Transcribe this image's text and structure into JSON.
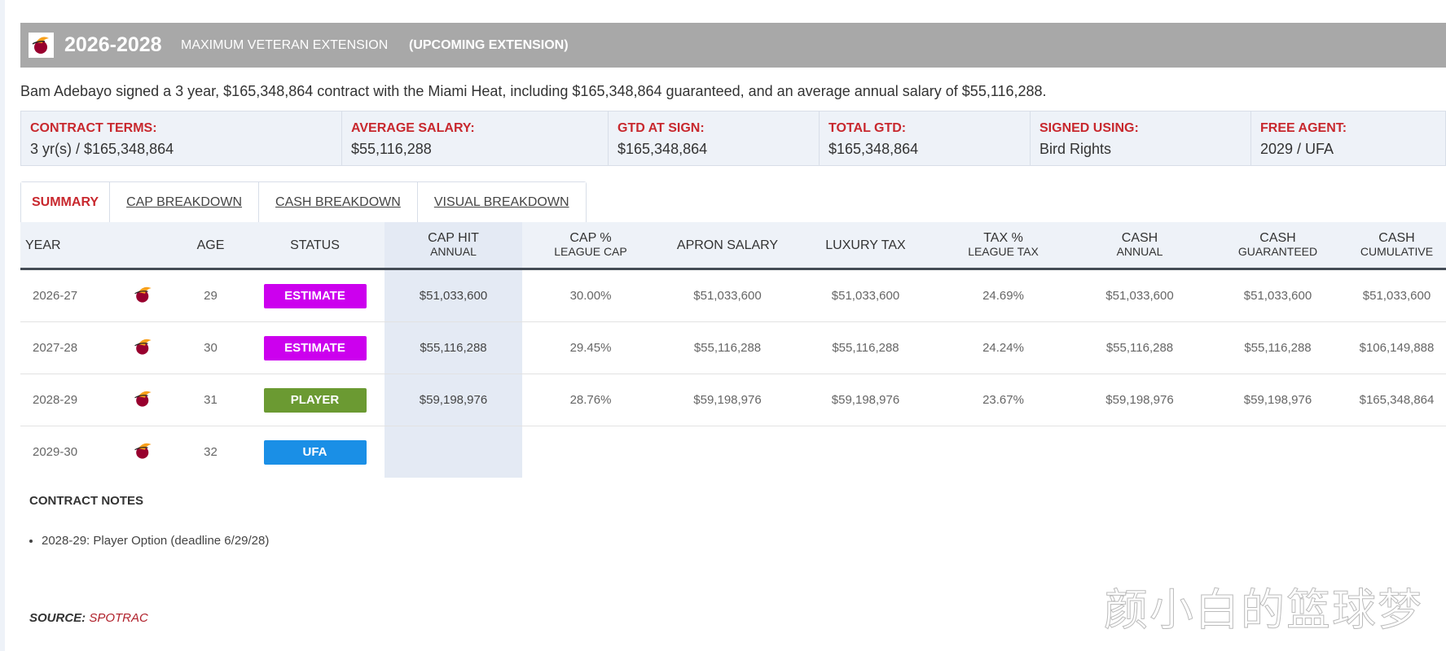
{
  "header": {
    "years": "2026-2028",
    "type": "MAXIMUM VETERAN EXTENSION",
    "tag": "(UPCOMING EXTENSION)"
  },
  "description": "Bam Adebayo signed a 3 year, $165,348,864 contract with the Miami Heat, including $165,348,864 guaranteed, and an average annual salary of $55,116,288.",
  "terms": [
    {
      "label": "CONTRACT TERMS:",
      "value": "3 yr(s) / $165,348,864"
    },
    {
      "label": "AVERAGE SALARY:",
      "value": "$55,116,288"
    },
    {
      "label": "GTD AT SIGN:",
      "value": "$165,348,864"
    },
    {
      "label": "TOTAL GTD:",
      "value": "$165,348,864"
    },
    {
      "label": "SIGNED USING:",
      "value": "Bird Rights"
    },
    {
      "label": "FREE AGENT:",
      "value": "2029 / UFA"
    }
  ],
  "tabs": [
    "SUMMARY",
    "CAP BREAKDOWN",
    "CASH BREAKDOWN",
    "VISUAL BREAKDOWN"
  ],
  "table": {
    "columns": [
      {
        "key": "year",
        "line1": "YEAR"
      },
      {
        "key": "logo"
      },
      {
        "key": "age",
        "line1": "AGE"
      },
      {
        "key": "status",
        "line1": "STATUS"
      },
      {
        "key": "cap_hit",
        "line1": "CAP HIT",
        "line2": "ANNUAL"
      },
      {
        "key": "cap_pct",
        "line1": "CAP %",
        "line2": "LEAGUE CAP"
      },
      {
        "key": "apron",
        "line1": "APRON SALARY"
      },
      {
        "key": "lux",
        "line1": "LUXURY TAX"
      },
      {
        "key": "tax_pct",
        "line1": "TAX %",
        "line2": "LEAGUE TAX"
      },
      {
        "key": "cash_annual",
        "line1": "CASH",
        "line2": "ANNUAL"
      },
      {
        "key": "cash_gtd",
        "line1": "CASH",
        "line2": "GUARANTEED"
      },
      {
        "key": "cash_cum",
        "line1": "CASH",
        "line2": "CUMULATIVE"
      }
    ],
    "rows": [
      {
        "year": "2026-27",
        "age": "29",
        "status": "ESTIMATE",
        "cap_hit": "$51,033,600",
        "cap_pct": "30.00%",
        "apron": "$51,033,600",
        "lux": "$51,033,600",
        "tax_pct": "24.69%",
        "cash_annual": "$51,033,600",
        "cash_gtd": "$51,033,600",
        "cash_cum": "$51,033,600"
      },
      {
        "year": "2027-28",
        "age": "30",
        "status": "ESTIMATE",
        "cap_hit": "$55,116,288",
        "cap_pct": "29.45%",
        "apron": "$55,116,288",
        "lux": "$55,116,288",
        "tax_pct": "24.24%",
        "cash_annual": "$55,116,288",
        "cash_gtd": "$55,116,288",
        "cash_cum": "$106,149,888"
      },
      {
        "year": "2028-29",
        "age": "31",
        "status": "PLAYER",
        "cap_hit": "$59,198,976",
        "cap_pct": "28.76%",
        "apron": "$59,198,976",
        "lux": "$59,198,976",
        "tax_pct": "23.67%",
        "cash_annual": "$59,198,976",
        "cash_gtd": "$59,198,976",
        "cash_cum": "$165,348,864"
      },
      {
        "year": "2029-30",
        "age": "32",
        "status": "UFA"
      }
    ]
  },
  "notes": {
    "title": "CONTRACT NOTES",
    "items": [
      "2028-29: Player Option (deadline 6/29/28)"
    ]
  },
  "source": {
    "label": "SOURCE:",
    "name": "SPOTRAC"
  },
  "watermark": "颜小白的篮球梦"
}
